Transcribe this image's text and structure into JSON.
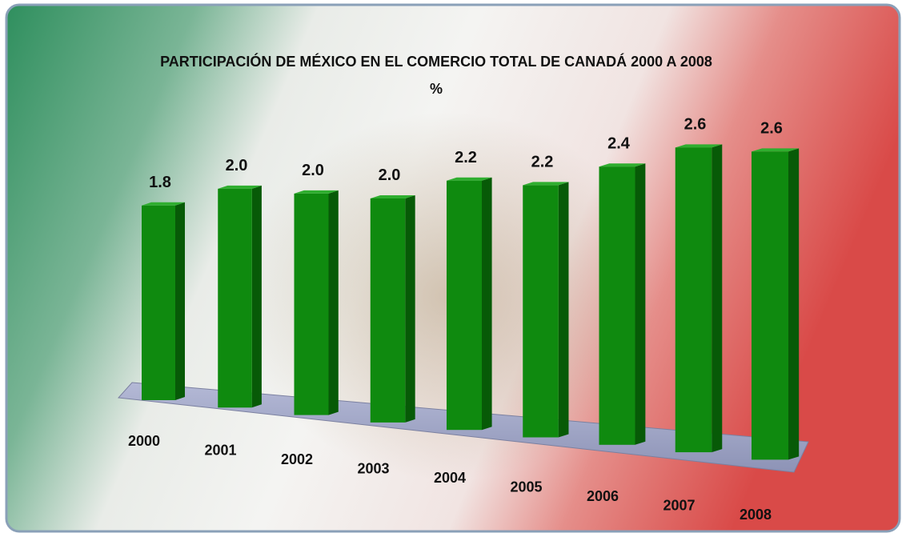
{
  "chart_data": {
    "type": "bar3d",
    "title": "PARTICIPACIÓN DE MÉXICO EN EL COMERCIO TOTAL DE CANADÁ 2000 A 2008",
    "subtitle": "%",
    "categories": [
      "2000",
      "2001",
      "2002",
      "2003",
      "2004",
      "2005",
      "2006",
      "2007",
      "2008"
    ],
    "values": [
      1.8,
      2.0,
      2.0,
      2.0,
      2.2,
      2.2,
      2.4,
      2.6,
      2.6
    ],
    "value_labels": [
      "1.8",
      "2.0",
      "2.0",
      "2.0",
      "2.2",
      "2.2",
      "2.4",
      "2.6",
      "2.6"
    ],
    "color": "#0f8a0f"
  }
}
